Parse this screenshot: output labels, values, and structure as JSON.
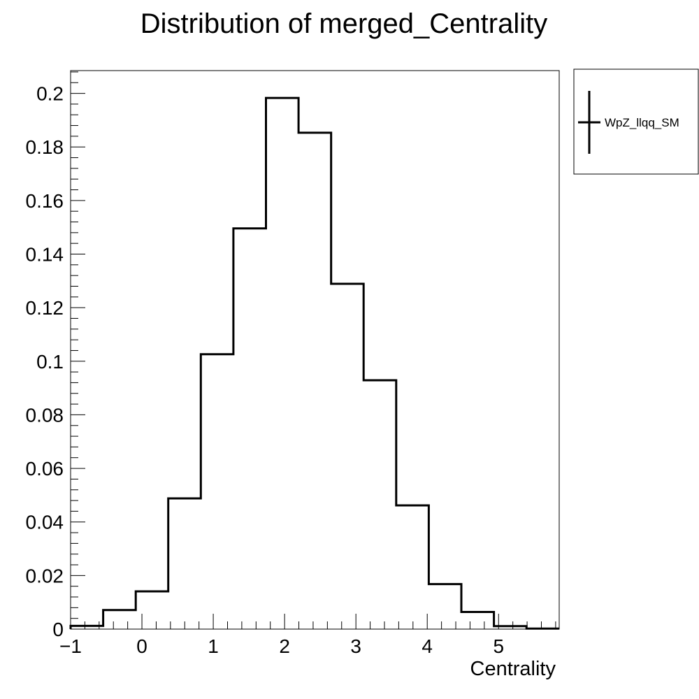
{
  "chart_data": {
    "type": "histogram",
    "title": "Distribution of merged_Centrality",
    "xlabel": "Centrality",
    "ylabel": "",
    "xlim": [
      -1.0,
      5.85
    ],
    "ylim": [
      0,
      0.2085
    ],
    "bin_edges": [
      -1.0,
      -0.5435,
      -0.087,
      0.3695,
      0.826,
      1.2825,
      1.739,
      2.1955,
      2.652,
      3.1085,
      3.565,
      4.0215,
      4.478,
      4.9345,
      5.391,
      5.8475
    ],
    "values": [
      0.0012,
      0.0071,
      0.0141,
      0.0488,
      0.1026,
      0.1496,
      0.1983,
      0.1853,
      0.1289,
      0.0929,
      0.0462,
      0.0168,
      0.0064,
      0.0011,
      0.0002
    ],
    "x_ticks": [
      -1,
      0,
      1,
      2,
      3,
      4,
      5
    ],
    "x_tick_labels": [
      "−1",
      "0",
      "1",
      "2",
      "3",
      "4",
      "5"
    ],
    "y_ticks": [
      0,
      0.02,
      0.04,
      0.06,
      0.08,
      0.1,
      0.12,
      0.14,
      0.16,
      0.18,
      0.2
    ],
    "y_tick_labels": [
      "0",
      "0.02",
      "0.04",
      "0.06",
      "0.08",
      "0.1",
      "0.12",
      "0.14",
      "0.16",
      "0.18",
      "0.2"
    ],
    "grid": false,
    "legend_position": "outside-top-right",
    "series": [
      {
        "name": "WpZ_llqq_SM",
        "color": "#000000"
      }
    ]
  }
}
